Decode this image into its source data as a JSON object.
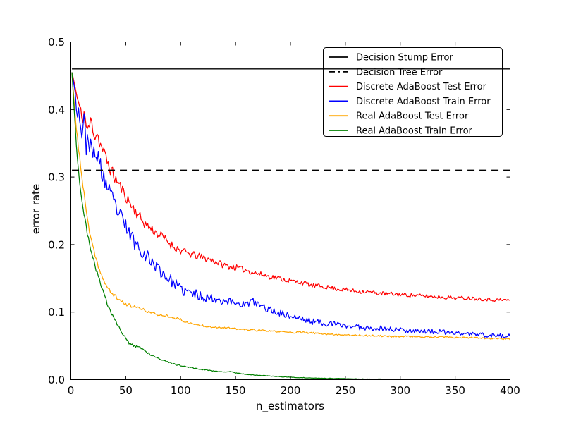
{
  "figure": {
    "background": "#ffffff"
  },
  "chart_data": {
    "type": "line",
    "title": "",
    "xlabel": "n_estimators",
    "ylabel": "error rate",
    "xlim": [
      0,
      400
    ],
    "ylim": [
      0.0,
      0.5
    ],
    "grid": false,
    "frame_color": "#000000",
    "x_ticks": [
      0,
      50,
      100,
      150,
      200,
      250,
      300,
      350,
      400
    ],
    "x_tick_labels": [
      "0",
      "50",
      "100",
      "150",
      "200",
      "250",
      "300",
      "350",
      "400"
    ],
    "y_ticks": [
      0.0,
      0.1,
      0.2,
      0.3,
      0.4,
      0.5
    ],
    "y_tick_labels": [
      "0.0",
      "0.1",
      "0.2",
      "0.3",
      "0.4",
      "0.5"
    ],
    "legend_position": "upper right",
    "legend_entries": [
      {
        "label": "Decision Stump Error",
        "color": "#000000",
        "dash": "solid"
      },
      {
        "label": "Decision Tree Error",
        "color": "#000000",
        "dash": "dashed"
      },
      {
        "label": "Discrete AdaBoost Test Error",
        "color": "#ff0000",
        "dash": "solid"
      },
      {
        "label": "Discrete AdaBoost Train Error",
        "color": "#0000ff",
        "dash": "solid"
      },
      {
        "label": "Real AdaBoost Test Error",
        "color": "#ffa500",
        "dash": "solid"
      },
      {
        "label": "Real AdaBoost Train Error",
        "color": "#008000",
        "dash": "solid"
      }
    ],
    "hlines": [
      {
        "label": "Decision Stump Error",
        "value": 0.46,
        "color": "#000000",
        "style": "solid"
      },
      {
        "label": "Decision Tree Error",
        "value": 0.31,
        "color": "#000000",
        "style": "dashed"
      }
    ],
    "series": [
      {
        "label": "Discrete AdaBoost Test Error",
        "color": "#ff0000",
        "noise": {
          "start": 0.013,
          "end": 0.0025,
          "decay": 90,
          "seed": 11,
          "min": 0.0
        },
        "keypoints": [
          [
            1,
            0.455
          ],
          [
            2,
            0.448
          ],
          [
            4,
            0.432
          ],
          [
            6,
            0.415
          ],
          [
            8,
            0.402
          ],
          [
            10,
            0.386
          ],
          [
            12,
            0.396
          ],
          [
            14,
            0.376
          ],
          [
            16,
            0.368
          ],
          [
            18,
            0.384
          ],
          [
            20,
            0.374
          ],
          [
            22,
            0.36
          ],
          [
            24,
            0.366
          ],
          [
            26,
            0.352
          ],
          [
            28,
            0.344
          ],
          [
            30,
            0.336
          ],
          [
            33,
            0.324
          ],
          [
            36,
            0.312
          ],
          [
            40,
            0.299
          ],
          [
            44,
            0.289
          ],
          [
            48,
            0.277
          ],
          [
            52,
            0.266
          ],
          [
            56,
            0.256
          ],
          [
            60,
            0.247
          ],
          [
            64,
            0.238
          ],
          [
            68,
            0.23
          ],
          [
            72,
            0.225
          ],
          [
            76,
            0.22
          ],
          [
            80,
            0.215
          ],
          [
            84,
            0.211
          ],
          [
            88,
            0.205
          ],
          [
            92,
            0.199
          ],
          [
            96,
            0.195
          ],
          [
            100,
            0.191
          ],
          [
            110,
            0.185
          ],
          [
            120,
            0.181
          ],
          [
            130,
            0.176
          ],
          [
            140,
            0.169
          ],
          [
            150,
            0.166
          ],
          [
            160,
            0.162
          ],
          [
            170,
            0.157
          ],
          [
            180,
            0.153
          ],
          [
            190,
            0.15
          ],
          [
            200,
            0.146
          ],
          [
            210,
            0.144
          ],
          [
            220,
            0.139
          ],
          [
            230,
            0.138
          ],
          [
            240,
            0.135
          ],
          [
            250,
            0.133
          ],
          [
            260,
            0.131
          ],
          [
            270,
            0.13
          ],
          [
            280,
            0.128
          ],
          [
            290,
            0.127
          ],
          [
            300,
            0.126
          ],
          [
            310,
            0.125
          ],
          [
            320,
            0.124
          ],
          [
            330,
            0.123
          ],
          [
            340,
            0.122
          ],
          [
            350,
            0.121
          ],
          [
            360,
            0.121
          ],
          [
            370,
            0.12
          ],
          [
            380,
            0.119
          ],
          [
            390,
            0.118
          ],
          [
            400,
            0.118
          ]
        ]
      },
      {
        "label": "Discrete AdaBoost Train Error",
        "color": "#0000ff",
        "noise": {
          "start": 0.02,
          "end": 0.0035,
          "decay": 80,
          "seed": 23,
          "min": 0.0
        },
        "keypoints": [
          [
            1,
            0.455
          ],
          [
            2,
            0.445
          ],
          [
            4,
            0.425
          ],
          [
            6,
            0.405
          ],
          [
            8,
            0.39
          ],
          [
            10,
            0.368
          ],
          [
            12,
            0.378
          ],
          [
            14,
            0.35
          ],
          [
            16,
            0.362
          ],
          [
            18,
            0.34
          ],
          [
            20,
            0.33
          ],
          [
            22,
            0.344
          ],
          [
            24,
            0.318
          ],
          [
            26,
            0.328
          ],
          [
            28,
            0.306
          ],
          [
            30,
            0.3
          ],
          [
            33,
            0.285
          ],
          [
            36,
            0.272
          ],
          [
            40,
            0.259
          ],
          [
            44,
            0.245
          ],
          [
            48,
            0.232
          ],
          [
            52,
            0.221
          ],
          [
            56,
            0.209
          ],
          [
            60,
            0.2
          ],
          [
            64,
            0.193
          ],
          [
            68,
            0.185
          ],
          [
            72,
            0.178
          ],
          [
            76,
            0.171
          ],
          [
            80,
            0.164
          ],
          [
            84,
            0.157
          ],
          [
            88,
            0.151
          ],
          [
            92,
            0.146
          ],
          [
            96,
            0.14
          ],
          [
            100,
            0.133
          ],
          [
            110,
            0.128
          ],
          [
            120,
            0.123
          ],
          [
            130,
            0.12
          ],
          [
            140,
            0.117
          ],
          [
            150,
            0.114
          ],
          [
            160,
            0.111
          ],
          [
            165,
            0.116
          ],
          [
            170,
            0.112
          ],
          [
            180,
            0.104
          ],
          [
            190,
            0.099
          ],
          [
            200,
            0.094
          ],
          [
            210,
            0.09
          ],
          [
            220,
            0.086
          ],
          [
            230,
            0.084
          ],
          [
            240,
            0.082
          ],
          [
            250,
            0.08
          ],
          [
            260,
            0.078
          ],
          [
            270,
            0.077
          ],
          [
            280,
            0.076
          ],
          [
            290,
            0.075
          ],
          [
            300,
            0.074
          ],
          [
            310,
            0.073
          ],
          [
            320,
            0.072
          ],
          [
            330,
            0.071
          ],
          [
            340,
            0.07
          ],
          [
            350,
            0.069
          ],
          [
            360,
            0.068
          ],
          [
            370,
            0.067
          ],
          [
            380,
            0.066
          ],
          [
            390,
            0.065
          ],
          [
            400,
            0.064
          ]
        ]
      },
      {
        "label": "Real AdaBoost Test Error",
        "color": "#ffa500",
        "noise": {
          "start": 0.004,
          "end": 0.0012,
          "decay": 60,
          "seed": 37,
          "min": 0.0
        },
        "keypoints": [
          [
            1,
            0.455
          ],
          [
            3,
            0.41
          ],
          [
            5,
            0.37
          ],
          [
            8,
            0.33
          ],
          [
            10,
            0.3
          ],
          [
            12,
            0.275
          ],
          [
            14,
            0.25
          ],
          [
            16,
            0.228
          ],
          [
            18,
            0.21
          ],
          [
            20,
            0.196
          ],
          [
            22,
            0.184
          ],
          [
            25,
            0.168
          ],
          [
            28,
            0.155
          ],
          [
            30,
            0.146
          ],
          [
            33,
            0.137
          ],
          [
            36,
            0.13
          ],
          [
            40,
            0.124
          ],
          [
            45,
            0.117
          ],
          [
            50,
            0.112
          ],
          [
            55,
            0.109
          ],
          [
            60,
            0.107
          ],
          [
            65,
            0.104
          ],
          [
            70,
            0.101
          ],
          [
            75,
            0.098
          ],
          [
            80,
            0.096
          ],
          [
            85,
            0.095
          ],
          [
            90,
            0.094
          ],
          [
            95,
            0.091
          ],
          [
            100,
            0.089
          ],
          [
            105,
            0.085
          ],
          [
            110,
            0.083
          ],
          [
            115,
            0.081
          ],
          [
            120,
            0.08
          ],
          [
            130,
            0.078
          ],
          [
            140,
            0.077
          ],
          [
            150,
            0.075
          ],
          [
            160,
            0.074
          ],
          [
            170,
            0.073
          ],
          [
            180,
            0.072
          ],
          [
            190,
            0.071
          ],
          [
            200,
            0.07
          ],
          [
            210,
            0.07
          ],
          [
            220,
            0.069
          ],
          [
            230,
            0.068
          ],
          [
            240,
            0.067
          ],
          [
            250,
            0.066
          ],
          [
            260,
            0.066
          ],
          [
            270,
            0.065
          ],
          [
            280,
            0.065
          ],
          [
            290,
            0.064
          ],
          [
            300,
            0.064
          ],
          [
            310,
            0.064
          ],
          [
            320,
            0.063
          ],
          [
            330,
            0.063
          ],
          [
            340,
            0.063
          ],
          [
            350,
            0.062
          ],
          [
            360,
            0.062
          ],
          [
            370,
            0.062
          ],
          [
            380,
            0.061
          ],
          [
            390,
            0.061
          ],
          [
            400,
            0.06
          ]
        ]
      },
      {
        "label": "Real AdaBoost Train Error",
        "color": "#008000",
        "noise": {
          "start": 0.005,
          "end": 0.0003,
          "decay": 50,
          "seed": 51,
          "min": 0.0002
        },
        "keypoints": [
          [
            1,
            0.455
          ],
          [
            3,
            0.4
          ],
          [
            5,
            0.35
          ],
          [
            7,
            0.31
          ],
          [
            9,
            0.28
          ],
          [
            11,
            0.255
          ],
          [
            13,
            0.235
          ],
          [
            15,
            0.215
          ],
          [
            17,
            0.2
          ],
          [
            19,
            0.19
          ],
          [
            21,
            0.175
          ],
          [
            23,
            0.163
          ],
          [
            25,
            0.152
          ],
          [
            27,
            0.142
          ],
          [
            29,
            0.133
          ],
          [
            31,
            0.124
          ],
          [
            33,
            0.113
          ],
          [
            35,
            0.104
          ],
          [
            37,
            0.098
          ],
          [
            39,
            0.092
          ],
          [
            41,
            0.086
          ],
          [
            43,
            0.08
          ],
          [
            45,
            0.075
          ],
          [
            47,
            0.068
          ],
          [
            50,
            0.061
          ],
          [
            53,
            0.054
          ],
          [
            56,
            0.051
          ],
          [
            60,
            0.049
          ],
          [
            64,
            0.047
          ],
          [
            68,
            0.042
          ],
          [
            72,
            0.038
          ],
          [
            76,
            0.035
          ],
          [
            80,
            0.032
          ],
          [
            84,
            0.029
          ],
          [
            88,
            0.026
          ],
          [
            92,
            0.024
          ],
          [
            96,
            0.022
          ],
          [
            100,
            0.021
          ],
          [
            105,
            0.019
          ],
          [
            110,
            0.018
          ],
          [
            115,
            0.016
          ],
          [
            120,
            0.015
          ],
          [
            125,
            0.014
          ],
          [
            130,
            0.013
          ],
          [
            135,
            0.012
          ],
          [
            140,
            0.011
          ],
          [
            145,
            0.012
          ],
          [
            150,
            0.01
          ],
          [
            155,
            0.009
          ],
          [
            160,
            0.008
          ],
          [
            165,
            0.007
          ],
          [
            170,
            0.0065
          ],
          [
            175,
            0.006
          ],
          [
            180,
            0.0055
          ],
          [
            185,
            0.005
          ],
          [
            190,
            0.0045
          ],
          [
            195,
            0.004
          ],
          [
            200,
            0.0035
          ],
          [
            210,
            0.003
          ],
          [
            220,
            0.0025
          ],
          [
            230,
            0.002
          ],
          [
            240,
            0.0018
          ],
          [
            250,
            0.0015
          ],
          [
            260,
            0.0012
          ],
          [
            270,
            0.001
          ],
          [
            280,
            0.0008
          ],
          [
            290,
            0.0007
          ],
          [
            300,
            0.0006
          ],
          [
            320,
            0.0005
          ],
          [
            340,
            0.0004
          ],
          [
            360,
            0.0003
          ],
          [
            380,
            0.0003
          ],
          [
            400,
            0.0002
          ]
        ]
      }
    ]
  }
}
